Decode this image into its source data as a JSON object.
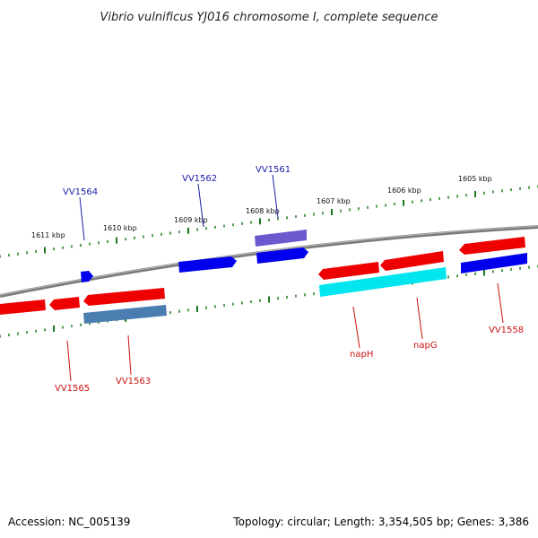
{
  "title": "Vibrio vulnificus YJ016 chromosome I, complete sequence",
  "footer": {
    "accession": "Accession: NC_005139",
    "summary": "Topology: circular; Length: 3,354,505 bp; Genes: 3,386"
  },
  "colors": {
    "backbone": "#888888",
    "tick": "#1a7a1a",
    "forward_gene": "#0000ee",
    "reverse_gene": "#ee0000",
    "forward_label": "#1a1aaa",
    "reverse_label": "#cc1111",
    "cyan_gene": "#00e5ee",
    "steel_gene": "#4a7eb0",
    "purple_gene": "#6a5acd"
  },
  "ticks": [
    "1611 kbp",
    "1610 kbp",
    "1609 kbp",
    "1608 kbp",
    "1607 kbp",
    "1606 kbp",
    "1605 kbp"
  ],
  "genes": {
    "VV1564": "VV1564",
    "VV1562": "VV1562",
    "VV1561": "VV1561",
    "VV1565": "VV1565",
    "VV1563": "VV1563",
    "napH": "napH",
    "napG": "napG",
    "VV1558": "VV1558"
  }
}
